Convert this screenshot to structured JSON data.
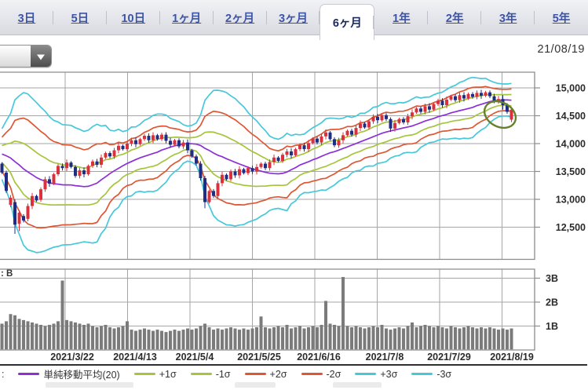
{
  "period_tabs": {
    "items": [
      {
        "id": "3day",
        "label": "3日"
      },
      {
        "id": "5day",
        "label": "5日"
      },
      {
        "id": "10day",
        "label": "10日"
      },
      {
        "id": "1month",
        "label": "1ヶ月"
      },
      {
        "id": "2month",
        "label": "2ヶ月"
      },
      {
        "id": "3month",
        "label": "3ヶ月"
      },
      {
        "id": "6month",
        "label": "6ヶ月"
      },
      {
        "id": "1year",
        "label": "1年"
      },
      {
        "id": "2year",
        "label": "2年"
      },
      {
        "id": "3year",
        "label": "3年"
      },
      {
        "id": "5year",
        "label": "5年"
      }
    ],
    "selected_id": "6month"
  },
  "date_label": "21/08/19",
  "volume_unit_label": ": B",
  "legend": {
    "prefix": ":",
    "items": [
      {
        "label": "単純移動平均(20)",
        "color": "#8c2fd6"
      },
      {
        "label": "+1σ",
        "color": "#a6c43c"
      },
      {
        "label": "-1σ",
        "color": "#a6c43c"
      },
      {
        "label": "+2σ",
        "color": "#df5633"
      },
      {
        "label": "-2σ",
        "color": "#df5633"
      },
      {
        "label": "+3σ",
        "color": "#46c8da"
      },
      {
        "label": "-3σ",
        "color": "#46c8da"
      }
    ]
  },
  "chart_data": {
    "type": "candlestick",
    "title": "6ヶ月 daily candlestick chart with Bollinger bands and volume",
    "x_labels": [
      "2021/3/22",
      "2021/4/13",
      "2021/5/4",
      "2021/5/25",
      "2021/6/16",
      "2021/7/8",
      "2021/7/29",
      "2021/8/19"
    ],
    "price_axis": {
      "side": "right",
      "ticks": [
        15000,
        14500,
        14000,
        13500,
        13000,
        12500
      ],
      "ylim": [
        11950,
        15280
      ]
    },
    "volume_axis": {
      "side": "right",
      "unit": "B",
      "ticks": [
        {
          "label": "3B",
          "value": 3
        },
        {
          "label": "2B",
          "value": 2
        },
        {
          "label": "1B",
          "value": 1
        }
      ],
      "ylim": [
        0,
        3.4
      ]
    },
    "grid": true,
    "legend_position": "bottom",
    "candle_colors": {
      "up": "#d9323e",
      "down": "#1f2d85"
    },
    "volume_color": "#7b7b7b",
    "grid_color": "#a6a6a6",
    "border_color": "#8c8c8c",
    "annotation": {
      "shape": "ellipse",
      "target": "latest-candles",
      "color": "#66802b"
    },
    "bollinger": {
      "period": 20,
      "ma_label": "単純移動平均(20)",
      "colors": {
        "ma": "#8c2fd6",
        "sigma1": "#a6c43c",
        "sigma2": "#df5633",
        "sigma3": "#46c8da"
      },
      "pre_window_closes": [
        13700,
        13760,
        13820,
        13880,
        13950,
        14020,
        13980,
        14050,
        14000,
        13930,
        13860,
        13910,
        13820,
        13730,
        13780,
        13690,
        13610,
        13670,
        13660,
        13650
      ]
    },
    "candles": [
      [
        13640,
        13480
      ],
      [
        13480,
        13150
      ],
      [
        12900,
        13030
      ],
      [
        12950,
        12545
      ],
      [
        12560,
        12760
      ],
      [
        12700,
        12620
      ],
      [
        12650,
        12880
      ],
      [
        12880,
        13060
      ],
      [
        13060,
        12980
      ],
      [
        12990,
        13180
      ],
      [
        13180,
        13360
      ],
      [
        13360,
        13280
      ],
      [
        13280,
        13450
      ],
      [
        13450,
        13600
      ],
      [
        13600,
        13560
      ],
      [
        13560,
        13660
      ],
      [
        13660,
        13580
      ],
      [
        13580,
        13420
      ],
      [
        13420,
        13520
      ],
      [
        13520,
        13450
      ],
      [
        13450,
        13600
      ],
      [
        13600,
        13680
      ],
      [
        13680,
        13620
      ],
      [
        13620,
        13750
      ],
      [
        13750,
        13830
      ],
      [
        13830,
        13770
      ],
      [
        13770,
        13880
      ],
      [
        13880,
        13960
      ],
      [
        13960,
        13900
      ],
      [
        13900,
        14000
      ],
      [
        14000,
        14060
      ],
      [
        14060,
        13990
      ],
      [
        13990,
        14080
      ],
      [
        14080,
        14140
      ],
      [
        14140,
        14060
      ],
      [
        14060,
        14150
      ],
      [
        14150,
        14080
      ],
      [
        14080,
        14160
      ],
      [
        14160,
        14050
      ],
      [
        14050,
        13980
      ],
      [
        13980,
        14060
      ],
      [
        14060,
        13950
      ],
      [
        13950,
        14020
      ],
      [
        14020,
        13880
      ],
      [
        13880,
        13770
      ],
      [
        13770,
        13640
      ],
      [
        13640,
        13380
      ],
      [
        13380,
        12950
      ],
      [
        12950,
        13150
      ],
      [
        13150,
        13060
      ],
      [
        13060,
        13290
      ],
      [
        13290,
        13440
      ],
      [
        13440,
        13360
      ],
      [
        13360,
        13500
      ],
      [
        13500,
        13430
      ],
      [
        13430,
        13540
      ],
      [
        13540,
        13470
      ],
      [
        13470,
        13560
      ],
      [
        13560,
        13500
      ],
      [
        13500,
        13580
      ],
      [
        13580,
        13640
      ],
      [
        13640,
        13560
      ],
      [
        13560,
        13670
      ],
      [
        13670,
        13750
      ],
      [
        13750,
        13690
      ],
      [
        13690,
        13800
      ],
      [
        13800,
        13860
      ],
      [
        13860,
        13790
      ],
      [
        13790,
        13900
      ],
      [
        13900,
        13970
      ],
      [
        13970,
        13900
      ],
      [
        13900,
        14010
      ],
      [
        14010,
        14090
      ],
      [
        14090,
        14020
      ],
      [
        14020,
        14130
      ],
      [
        14130,
        14200
      ],
      [
        14200,
        14080
      ],
      [
        14080,
        13970
      ],
      [
        13970,
        14060
      ],
      [
        14060,
        14150
      ],
      [
        14150,
        14230
      ],
      [
        14230,
        14160
      ],
      [
        14160,
        14280
      ],
      [
        14280,
        14360
      ],
      [
        14360,
        14290
      ],
      [
        14290,
        14400
      ],
      [
        14400,
        14480
      ],
      [
        14480,
        14420
      ],
      [
        14420,
        14510
      ],
      [
        14510,
        14440
      ],
      [
        14440,
        14270
      ],
      [
        14270,
        14370
      ],
      [
        14370,
        14440
      ],
      [
        14440,
        14380
      ],
      [
        14380,
        14490
      ],
      [
        14490,
        14560
      ],
      [
        14560,
        14630
      ],
      [
        14630,
        14570
      ],
      [
        14570,
        14670
      ],
      [
        14670,
        14610
      ],
      [
        14610,
        14710
      ],
      [
        14710,
        14770
      ],
      [
        14770,
        14690
      ],
      [
        14690,
        14790
      ],
      [
        14790,
        14850
      ],
      [
        14850,
        14780
      ],
      [
        14780,
        14870
      ],
      [
        14870,
        14810
      ],
      [
        14810,
        14890
      ],
      [
        14890,
        14840
      ],
      [
        14840,
        14910
      ],
      [
        14910,
        14860
      ],
      [
        14860,
        14920
      ],
      [
        14920,
        14850
      ],
      [
        14850,
        14770
      ],
      [
        14770,
        14800
      ],
      [
        14800,
        14690
      ],
      [
        14690,
        14570
      ],
      [
        14430,
        14610
      ]
    ],
    "wick_overrides": {
      "3": [
        13000,
        12380
      ],
      "4": [
        12800,
        12430
      ],
      "47": [
        13420,
        12840
      ],
      "90": [
        14470,
        14210
      ],
      "116": [
        14870,
        14610
      ]
    },
    "volumes_B": [
      1.1,
      1.2,
      1.5,
      1.45,
      1.3,
      1.25,
      1.2,
      1.15,
      1.1,
      1.05,
      1.0,
      1.05,
      1.1,
      1.2,
      2.9,
      1.25,
      1.2,
      1.15,
      1.1,
      1.05,
      1.1,
      1.0,
      0.95,
      1.0,
      1.05,
      0.95,
      0.9,
      0.95,
      1.0,
      1.2,
      0.85,
      0.8,
      0.85,
      0.9,
      0.85,
      0.8,
      0.85,
      0.8,
      0.75,
      0.8,
      0.85,
      0.8,
      0.85,
      0.9,
      0.85,
      0.9,
      1.0,
      1.1,
      0.95,
      0.85,
      0.9,
      0.85,
      0.9,
      0.95,
      0.9,
      0.85,
      0.9,
      0.85,
      0.9,
      0.95,
      1.4,
      0.95,
      0.9,
      0.95,
      1.0,
      0.95,
      1.05,
      0.9,
      0.95,
      1.0,
      0.9,
      0.95,
      1.0,
      0.95,
      1.05,
      2.05,
      1.1,
      1.05,
      1.0,
      3.05,
      1.0,
      0.95,
      1.0,
      0.95,
      0.9,
      0.95,
      1.0,
      0.95,
      1.05,
      0.9,
      0.85,
      0.9,
      0.95,
      0.9,
      1.0,
      1.15,
      0.95,
      1.0,
      1.05,
      1.0,
      0.95,
      1.0,
      0.95,
      0.9,
      1.0,
      0.95,
      0.9,
      0.95,
      1.0,
      0.95,
      0.9,
      0.95,
      0.9,
      0.95,
      0.9,
      0.85,
      0.9,
      0.85,
      0.9
    ]
  }
}
